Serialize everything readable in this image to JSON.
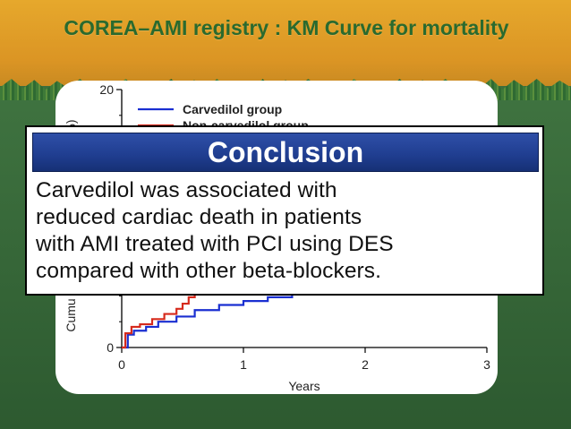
{
  "slide": {
    "title": "COREA–AMI registry : KM Curve for mortality"
  },
  "colors": {
    "title": "#2a6a2e",
    "carvedilol_line": "#1a2fd1",
    "other_line": "#d62a1c",
    "conclusion_header": "#1f3d8f"
  },
  "chart_data": {
    "type": "line",
    "title": "",
    "xlabel": "Years",
    "ylabel": "Cumulative incidence (%)",
    "ylabel_visible_fragments": [
      "%)",
      "Cumu"
    ],
    "x_ticks": [
      "0",
      "1",
      "2",
      "3"
    ],
    "y_ticks": [
      "0",
      "20"
    ],
    "xlim": [
      0,
      3
    ],
    "ylim": [
      0,
      20
    ],
    "legend_position": "top-left",
    "series": [
      {
        "name": "Carvedilol group",
        "color": "#1a2fd1",
        "x": [
          0,
          0.05,
          0.1,
          0.2,
          0.3,
          0.45,
          0.6,
          0.8,
          1.0,
          1.2,
          1.4,
          1.6,
          1.7
        ],
        "y": [
          0,
          1.0,
          1.3,
          1.6,
          2.0,
          2.4,
          2.9,
          3.3,
          3.6,
          3.9,
          4.2,
          4.6,
          4.8
        ]
      },
      {
        "name": "Non-carvedilol group",
        "color": "#d62a1c",
        "x": [
          0,
          0.03,
          0.08,
          0.15,
          0.25,
          0.35,
          0.45,
          0.5,
          0.55,
          0.6,
          0.65,
          0.7
        ],
        "y": [
          0,
          1.1,
          1.6,
          1.8,
          2.2,
          2.6,
          3.0,
          3.4,
          3.9,
          4.4,
          4.9,
          5.3
        ]
      }
    ]
  },
  "conclusion": {
    "heading": "Conclusion",
    "text": "Carvedilol was associated with\nreduced cardiac death in patients\nwith AMI treated with PCI using DES\ncompared with other beta-blockers."
  }
}
